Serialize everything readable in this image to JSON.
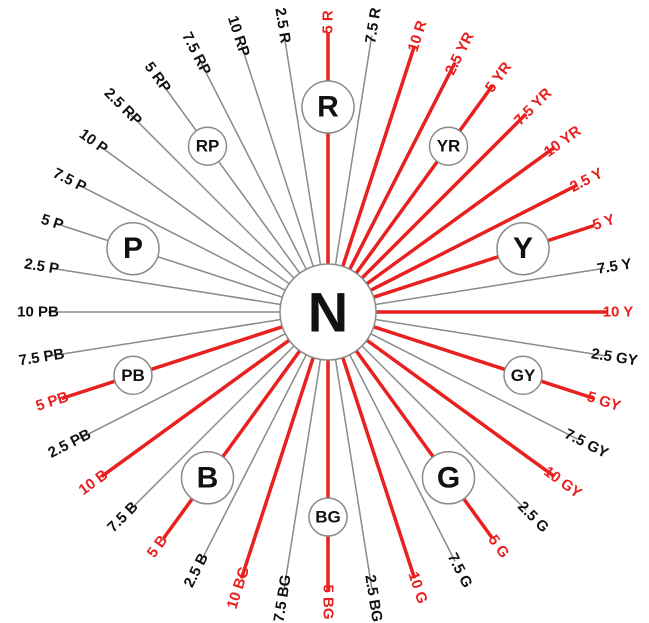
{
  "colors": {
    "red": "#e8201f",
    "gray": "#8a8a8a",
    "black": "#111111",
    "background": "#ffffff"
  },
  "center_label": "N",
  "spokes": [
    {
      "label": "5 R",
      "principal": true
    },
    {
      "label": "7.5 R",
      "principal": false
    },
    {
      "label": "10 R",
      "principal": true
    },
    {
      "label": "2.5 YR",
      "principal": true
    },
    {
      "label": "5 YR",
      "principal": true
    },
    {
      "label": "7.5 YR",
      "principal": true
    },
    {
      "label": "10 YR",
      "principal": true
    },
    {
      "label": "2.5 Y",
      "principal": true
    },
    {
      "label": "5 Y",
      "principal": true
    },
    {
      "label": "7.5 Y",
      "principal": false
    },
    {
      "label": "10 Y",
      "principal": true
    },
    {
      "label": "2.5 GY",
      "principal": false
    },
    {
      "label": "5 GY",
      "principal": true
    },
    {
      "label": "7.5 GY",
      "principal": false
    },
    {
      "label": "10 GY",
      "principal": true
    },
    {
      "label": "2.5 G",
      "principal": false
    },
    {
      "label": "5 G",
      "principal": true
    },
    {
      "label": "7.5 G",
      "principal": false
    },
    {
      "label": "10 G",
      "principal": true
    },
    {
      "label": "2.5 BG",
      "principal": false
    },
    {
      "label": "5 BG",
      "principal": true
    },
    {
      "label": "7.5 BG",
      "principal": false
    },
    {
      "label": "10 BG",
      "principal": true
    },
    {
      "label": "2.5 B",
      "principal": false
    },
    {
      "label": "5 B",
      "principal": true
    },
    {
      "label": "7.5 B",
      "principal": false
    },
    {
      "label": "10 B",
      "principal": true
    },
    {
      "label": "2.5 PB",
      "principal": false
    },
    {
      "label": "5 PB",
      "principal": true
    },
    {
      "label": "7.5 PB",
      "principal": false
    },
    {
      "label": "10 PB",
      "principal": false
    },
    {
      "label": "2.5 P",
      "principal": false
    },
    {
      "label": "5 P",
      "principal": false
    },
    {
      "label": "7.5 P",
      "principal": false
    },
    {
      "label": "10 P",
      "principal": false
    },
    {
      "label": "2.5 RP",
      "principal": false
    },
    {
      "label": "5 RP",
      "principal": false
    },
    {
      "label": "7.5 RP",
      "principal": false
    },
    {
      "label": "10 RP",
      "principal": false
    },
    {
      "label": "2.5 R",
      "principal": false
    }
  ],
  "hue_circles": [
    {
      "label": "R",
      "large": true
    },
    {
      "label": "YR",
      "large": false
    },
    {
      "label": "Y",
      "large": true
    },
    {
      "label": "GY",
      "large": false
    },
    {
      "label": "G",
      "large": true
    },
    {
      "label": "BG",
      "large": false
    },
    {
      "label": "B",
      "large": true
    },
    {
      "label": "PB",
      "large": false
    },
    {
      "label": "P",
      "large": true
    },
    {
      "label": "RP",
      "large": false
    }
  ]
}
